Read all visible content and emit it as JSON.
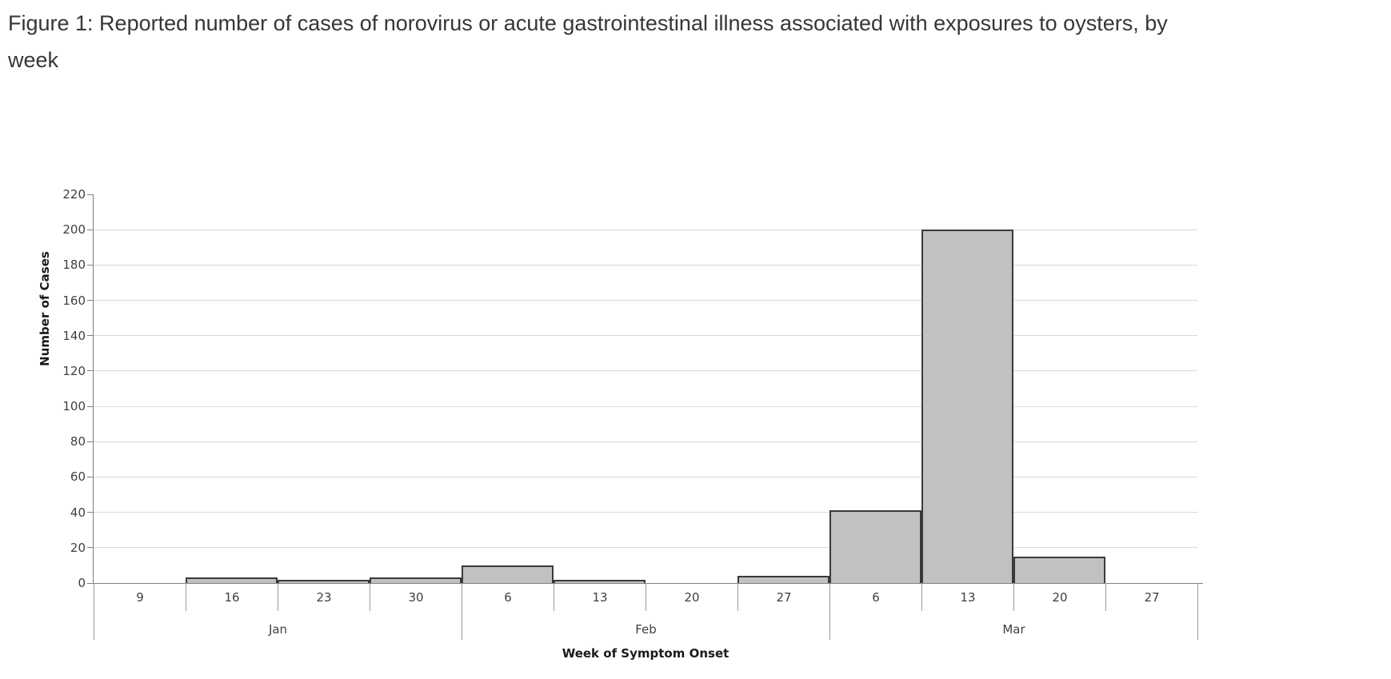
{
  "figure": {
    "title_line1": "Figure 1: Reported number of cases of norovirus or acute gastrointestinal illness associated with exposures to oysters, by",
    "title_line2": "week"
  },
  "chart_data": {
    "type": "bar",
    "title": "Figure 1: Reported number of cases of norovirus or acute gastrointestinal illness associated with exposures to oysters, by week",
    "xlabel": "Week of Symptom Onset",
    "ylabel": "Number of Cases",
    "ylim": [
      0,
      220
    ],
    "ytick_step": 20,
    "grid": true,
    "legend": false,
    "bar_fill": "#c1c1c1",
    "bar_border": "#3a3a3a",
    "gridline_color": "#d9d9d9",
    "weeks": [
      "9",
      "16",
      "23",
      "30",
      "6",
      "13",
      "20",
      "27",
      "6",
      "13",
      "20",
      "27"
    ],
    "months": [
      {
        "label": "Jan",
        "span": 4
      },
      {
        "label": "Feb",
        "span": 4
      },
      {
        "label": "Mar",
        "span": 4
      }
    ],
    "values": [
      0,
      3,
      2,
      3,
      10,
      2,
      0,
      4,
      41,
      200,
      15,
      0
    ]
  }
}
